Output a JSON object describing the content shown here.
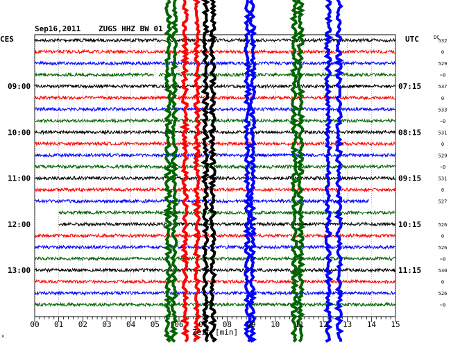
{
  "header": {
    "date": "Sep16,2011",
    "station": "ZUGS HHZ BW 01",
    "left_zone": "CES",
    "right_zone": "UTC",
    "dc_label": "DC"
  },
  "colors": {
    "black": "#000000",
    "red": "#ff0000",
    "blue": "#0000ff",
    "green": "#006400",
    "grid": "#888888"
  },
  "chart_data": {
    "type": "line",
    "title": "Sep16,2011  ZUGS HHZ BW 01",
    "xlabel": "Zeit [min]",
    "xlim": [
      0,
      15
    ],
    "x_ticks": [
      "00",
      "01",
      "02",
      "03",
      "04",
      "05",
      "06",
      "07",
      "08",
      "09",
      "10",
      "11",
      "12",
      "13",
      "14",
      "15"
    ],
    "trace_count": 24,
    "trace_color_cycle": [
      "black",
      "red",
      "blue",
      "green"
    ],
    "left_time_labels": [
      {
        "trace": 4,
        "label": "09:00"
      },
      {
        "trace": 8,
        "label": "10:00"
      },
      {
        "trace": 12,
        "label": "11:00"
      },
      {
        "trace": 16,
        "label": "12:00"
      },
      {
        "trace": 20,
        "label": "13:00"
      }
    ],
    "right_time_labels": [
      {
        "trace": 4,
        "label": "07:15"
      },
      {
        "trace": 8,
        "label": "08:15"
      },
      {
        "trace": 12,
        "label": "09:15"
      },
      {
        "trace": 16,
        "label": "10:15"
      },
      {
        "trace": 20,
        "label": "11:15"
      }
    ],
    "dc_offsets": [
      "532",
      "0",
      "529",
      "~0",
      "537",
      "0",
      "533",
      "~0",
      "531",
      "0",
      "529",
      "~0",
      "531",
      "0",
      "527",
      "",
      "526",
      "0",
      "526",
      "~0",
      "530",
      "0",
      "526",
      "~0"
    ],
    "vertical_bursts": [
      {
        "minute": 5.55,
        "color": "green"
      },
      {
        "minute": 5.8,
        "color": "green"
      },
      {
        "minute": 6.25,
        "color": "red"
      },
      {
        "minute": 6.75,
        "color": "red"
      },
      {
        "minute": 7.1,
        "color": "black"
      },
      {
        "minute": 7.4,
        "color": "black"
      },
      {
        "minute": 8.85,
        "color": "blue"
      },
      {
        "minute": 9.05,
        "color": "blue"
      },
      {
        "minute": 10.8,
        "color": "green"
      },
      {
        "minute": 11.05,
        "color": "green"
      },
      {
        "minute": 12.2,
        "color": "blue"
      },
      {
        "minute": 12.65,
        "color": "blue"
      }
    ],
    "gaps": [
      {
        "trace": 3,
        "start": 4.95,
        "end": 5.15
      },
      {
        "trace": 14,
        "start": 13.9,
        "end": 15
      },
      {
        "trace": 15,
        "start": 0,
        "end": 1.0
      },
      {
        "trace": 16,
        "start": 0,
        "end": 1.0
      }
    ]
  },
  "footer": {
    "corner_mark": "x"
  }
}
